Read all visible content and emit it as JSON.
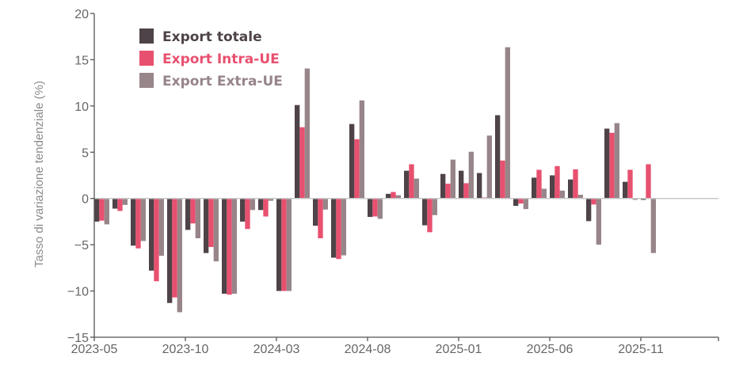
{
  "chart_data": {
    "type": "bar",
    "title": "",
    "xlabel": "",
    "ylabel": "Tasso di variazione tendenziale (%)",
    "ylim": [
      -15,
      20
    ],
    "yticks": [
      20,
      15,
      10,
      5,
      0,
      -5,
      -10,
      -15
    ],
    "ytick_labels": [
      "20",
      "15",
      "10",
      "5",
      "0",
      "−5",
      "−10",
      "−15"
    ],
    "xtick_labels": [
      "2023-05",
      "2023-10",
      "2024-03",
      "2024-08",
      "2025-01",
      "2025-06",
      "2025-11"
    ],
    "xtick_every_n_months": 5,
    "x_axis_extent_months": 34.3,
    "legend_position": "top-left",
    "grid": false,
    "categories": [
      "2023-05",
      "2023-06",
      "2023-07",
      "2023-08",
      "2023-09",
      "2023-10",
      "2023-11",
      "2023-12",
      "2024-01",
      "2024-02",
      "2024-03",
      "2024-04",
      "2024-05",
      "2024-06",
      "2024-07",
      "2024-08",
      "2024-09",
      "2024-10",
      "2024-11",
      "2024-12",
      "2025-01",
      "2025-02",
      "2025-03",
      "2025-04",
      "2025-05",
      "2025-06",
      "2025-07",
      "2025-08",
      "2025-09",
      "2025-10",
      "2025-11"
    ],
    "series": [
      {
        "name": "Export totale",
        "color": "#4e4348",
        "values": [
          -2.5,
          -1.1,
          -5.1,
          -7.8,
          -11.3,
          -3.4,
          -5.9,
          -10.3,
          -2.5,
          -1.25,
          -10.0,
          10.1,
          -2.95,
          -6.4,
          8.05,
          -2.0,
          0.5,
          3.0,
          -2.9,
          2.65,
          3.0,
          2.75,
          9.0,
          -0.8,
          2.25,
          2.5,
          2.05,
          -2.45,
          7.55,
          1.8,
          -0.15
        ]
      },
      {
        "name": "Export Intra-UE",
        "color": "#e8506f",
        "values": [
          -2.4,
          -1.35,
          -5.4,
          -8.95,
          -10.7,
          -2.7,
          -5.25,
          -10.4,
          -3.3,
          -1.95,
          -10.0,
          7.7,
          -4.3,
          -6.55,
          6.4,
          -1.95,
          0.7,
          3.7,
          -3.65,
          1.6,
          1.65,
          0.1,
          4.1,
          -0.55,
          3.1,
          3.5,
          3.15,
          -0.65,
          7.1,
          3.1,
          3.7
        ]
      },
      {
        "name": "Export Extra-UE",
        "color": "#978589",
        "values": [
          -2.8,
          -0.7,
          -4.6,
          -6.2,
          -12.3,
          -4.3,
          -6.8,
          -10.3,
          -1.25,
          -0.25,
          -10.0,
          14.05,
          -1.2,
          -6.15,
          10.6,
          -2.2,
          0.35,
          2.15,
          -1.8,
          4.2,
          5.05,
          6.8,
          16.35,
          -1.15,
          1.05,
          0.85,
          0.4,
          -5.0,
          8.15,
          -0.15,
          -5.9
        ]
      }
    ]
  },
  "colors": {
    "axis": "#555555",
    "zero_line": "#c8c8c8"
  }
}
